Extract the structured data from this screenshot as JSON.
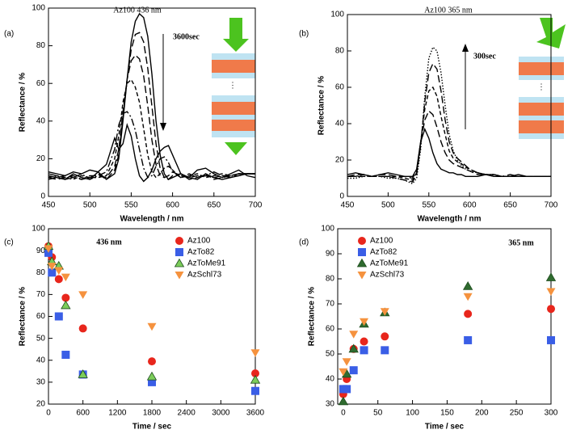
{
  "chart_data": [
    {
      "type": "line",
      "panel_label": "(a)",
      "title": "Az100 436 nm",
      "xlabel": "Wavelength / nm",
      "ylabel": "Reflectance / %",
      "annotations": [
        "3600sec"
      ],
      "x": [
        450,
        460,
        470,
        480,
        490,
        500,
        510,
        520,
        530,
        535,
        540,
        545,
        550,
        555,
        560,
        565,
        570,
        575,
        580,
        585,
        590,
        595,
        600,
        610,
        620,
        630,
        640,
        650,
        660,
        670,
        680,
        690,
        700
      ],
      "xlim": [
        450,
        700
      ],
      "xticks": [
        450,
        500,
        550,
        600,
        650,
        700
      ],
      "ylim": [
        0,
        100
      ],
      "yticks": [
        0,
        20,
        40,
        60,
        80,
        100
      ],
      "series": [
        {
          "color": "#000000",
          "dash": "solid",
          "values": [
            11,
            10,
            9,
            12,
            10,
            9,
            13,
            9,
            12,
            20,
            40,
            62,
            82,
            93,
            97,
            95,
            85,
            65,
            40,
            22,
            12,
            9,
            10,
            12,
            10,
            9,
            12,
            10,
            9,
            10,
            11,
            12,
            12
          ]
        },
        {
          "color": "#000000",
          "dash": "dashed",
          "values": [
            10,
            9,
            10,
            11,
            9,
            10,
            12,
            9,
            14,
            22,
            42,
            62,
            78,
            86,
            87,
            82,
            68,
            48,
            28,
            15,
            10,
            9,
            11,
            12,
            9,
            10,
            12,
            9,
            10,
            11,
            11,
            12,
            12
          ]
        },
        {
          "color": "#000000",
          "dash": "dashed",
          "values": [
            9,
            10,
            11,
            10,
            9,
            11,
            11,
            10,
            16,
            25,
            45,
            62,
            72,
            75,
            73,
            64,
            48,
            30,
            17,
            11,
            10,
            11,
            13,
            11,
            10,
            11,
            11,
            10,
            11,
            11,
            12,
            12,
            12
          ]
        },
        {
          "color": "#000000",
          "dash": "short-dash",
          "values": [
            10,
            11,
            10,
            9,
            11,
            10,
            10,
            11,
            20,
            32,
            50,
            60,
            62,
            58,
            50,
            36,
            22,
            13,
            10,
            12,
            15,
            16,
            14,
            10,
            11,
            12,
            10,
            11,
            12,
            11,
            12,
            12,
            12
          ]
        },
        {
          "color": "#000000",
          "dash": "dashdot",
          "values": [
            12,
            11,
            9,
            10,
            12,
            9,
            11,
            13,
            25,
            38,
            44,
            45,
            42,
            35,
            25,
            15,
            10,
            11,
            16,
            20,
            21,
            18,
            13,
            10,
            12,
            10,
            11,
            13,
            11,
            10,
            12,
            12,
            12
          ]
        },
        {
          "color": "#000000",
          "dash": "solid",
          "values": [
            13,
            12,
            11,
            13,
            12,
            14,
            13,
            17,
            31,
            25,
            28,
            38,
            32,
            20,
            11,
            8,
            10,
            14,
            20,
            24,
            26,
            27,
            22,
            12,
            10,
            14,
            15,
            12,
            10,
            12,
            14,
            11,
            10
          ]
        }
      ]
    },
    {
      "type": "line",
      "panel_label": "(b)",
      "title": "Az100 365 nm",
      "xlabel": "Wavelength / nm",
      "ylabel": "Reflectance / %",
      "annotations": [
        "300sec"
      ],
      "x": [
        450,
        460,
        470,
        480,
        490,
        500,
        510,
        520,
        530,
        535,
        540,
        545,
        550,
        555,
        560,
        565,
        570,
        575,
        580,
        585,
        590,
        595,
        600,
        610,
        620,
        630,
        640,
        650,
        660,
        670,
        680,
        690,
        700
      ],
      "xlim": [
        450,
        700
      ],
      "xticks": [
        450,
        500,
        550,
        600,
        650,
        700
      ],
      "ylim": [
        0,
        100
      ],
      "yticks": [
        0,
        20,
        40,
        60,
        80,
        100
      ],
      "series": [
        {
          "color": "#000000",
          "dash": "solid",
          "values": [
            12,
            13,
            12,
            11,
            12,
            13,
            12,
            11,
            11,
            15,
            30,
            37,
            32,
            24,
            18,
            15,
            14,
            13,
            13,
            12,
            12,
            11,
            11,
            11,
            12,
            11,
            11,
            11,
            12,
            11,
            11,
            11,
            11
          ]
        },
        {
          "color": "#000000",
          "dash": "dashed",
          "values": [
            11,
            12,
            12,
            11,
            12,
            12,
            11,
            11,
            10,
            14,
            30,
            42,
            47,
            45,
            38,
            30,
            24,
            20,
            18,
            17,
            16,
            15,
            14,
            12,
            12,
            11,
            11,
            12,
            11,
            11,
            11,
            11,
            11
          ]
        },
        {
          "color": "#000000",
          "dash": "short-dash",
          "values": [
            11,
            11,
            12,
            11,
            11,
            11,
            11,
            10,
            9,
            13,
            30,
            48,
            58,
            60,
            55,
            44,
            34,
            25,
            21,
            19,
            18,
            16,
            15,
            13,
            12,
            12,
            11,
            11,
            11,
            11,
            11,
            11,
            11
          ]
        },
        {
          "color": "#000000",
          "dash": "dashed",
          "values": [
            11,
            11,
            11,
            11,
            11,
            11,
            10,
            9,
            8,
            12,
            28,
            52,
            68,
            73,
            70,
            58,
            42,
            30,
            24,
            21,
            19,
            17,
            15,
            13,
            12,
            12,
            11,
            11,
            11,
            11,
            11,
            11,
            11
          ]
        },
        {
          "color": "#000000",
          "dash": "dotted",
          "values": [
            10,
            10,
            11,
            11,
            11,
            10,
            10,
            9,
            7,
            10,
            26,
            55,
            76,
            82,
            80,
            68,
            50,
            34,
            25,
            20,
            17,
            15,
            14,
            13,
            12,
            12,
            11,
            11,
            11,
            11,
            11,
            11,
            11
          ]
        }
      ]
    },
    {
      "type": "scatter",
      "panel_label": "(c)",
      "xlabel": "Time / sec",
      "ylabel": "Reflectance / %",
      "annotations": [
        "436 nm"
      ],
      "xlim": [
        0,
        3600
      ],
      "xticks": [
        0,
        600,
        1200,
        1800,
        2400,
        3000,
        3600
      ],
      "ylim": [
        20,
        100
      ],
      "yticks": [
        20,
        30,
        40,
        50,
        60,
        70,
        80,
        90,
        100
      ],
      "series": [
        {
          "name": "Az100",
          "color": "#e8261c",
          "marker": "circle",
          "x": [
            0,
            60,
            180,
            300,
            600,
            1800,
            3600
          ],
          "values": [
            92,
            87,
            77,
            68.5,
            54.5,
            39.5,
            34
          ]
        },
        {
          "name": "AzTo82",
          "color": "#3a5ee6",
          "marker": "square",
          "x": [
            0,
            60,
            180,
            300,
            600,
            1800,
            3600
          ],
          "values": [
            89,
            80,
            60,
            42.5,
            33.5,
            30,
            26
          ]
        },
        {
          "name": "AzToMe91",
          "color": "#7ccd5a",
          "marker": "triangle-up",
          "x": [
            0,
            60,
            180,
            300,
            600,
            1800,
            3600
          ],
          "values": [
            92,
            85,
            83,
            65,
            33.5,
            32.5,
            31
          ]
        },
        {
          "name": "AzSchl73",
          "color": "#f5923e",
          "marker": "triangle-down",
          "x": [
            0,
            60,
            180,
            300,
            600,
            1800,
            3600
          ],
          "values": [
            91,
            83,
            81,
            78,
            70,
            55.5,
            43.5
          ]
        }
      ]
    },
    {
      "type": "scatter",
      "panel_label": "(d)",
      "xlabel": "Time / sec",
      "ylabel": "Reflectance / %",
      "annotations": [
        "365 nm"
      ],
      "xlim": [
        -8,
        300
      ],
      "xticks": [
        0,
        50,
        100,
        150,
        200,
        250,
        300
      ],
      "ylim": [
        30,
        100
      ],
      "yticks": [
        30,
        40,
        50,
        60,
        70,
        80,
        90,
        100
      ],
      "series": [
        {
          "name": "Az100",
          "color": "#e8261c",
          "marker": "circle",
          "x": [
            0,
            5,
            15,
            30,
            60,
            180,
            300
          ],
          "values": [
            34,
            40,
            52,
            55,
            57,
            66,
            68
          ]
        },
        {
          "name": "AzTo82",
          "color": "#3a5ee6",
          "marker": "square",
          "x": [
            0,
            5,
            15,
            30,
            60,
            180,
            300
          ],
          "values": [
            36,
            36,
            43.5,
            51.5,
            51.5,
            55.5,
            55.5
          ]
        },
        {
          "name": "AzToMe91",
          "color": "#2f6b2f",
          "marker": "triangle-up",
          "x": [
            0,
            5,
            15,
            30,
            60,
            180,
            300
          ],
          "values": [
            31,
            42,
            52,
            62,
            66.5,
            77,
            80.5
          ]
        },
        {
          "name": "AzSchl73",
          "color": "#f5923e",
          "marker": "triangle-down",
          "x": [
            0,
            5,
            15,
            30,
            60,
            180,
            300
          ],
          "values": [
            43,
            47,
            58,
            63,
            67,
            73,
            75
          ]
        }
      ]
    }
  ]
}
